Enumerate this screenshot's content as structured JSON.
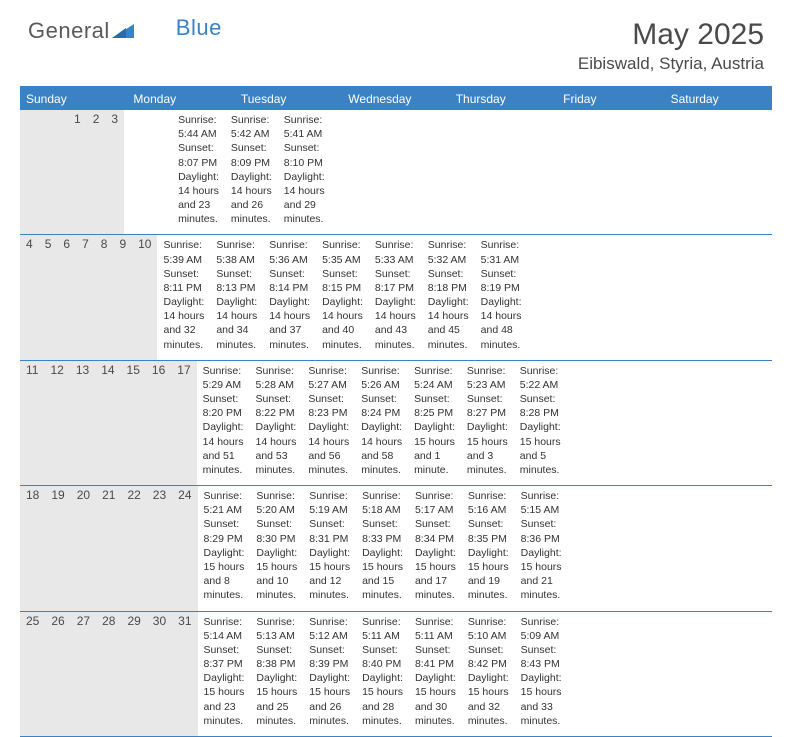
{
  "brand": {
    "part1": "General",
    "part2": "Blue"
  },
  "title": "May 2025",
  "location": "Eibiswald, Styria, Austria",
  "colors": {
    "accent": "#3b82c4",
    "header_bg": "#3b82c4",
    "daynum_bg": "#e8e8e8",
    "text": "#333333",
    "title_text": "#4a4a4a"
  },
  "weekdays": [
    "Sunday",
    "Monday",
    "Tuesday",
    "Wednesday",
    "Thursday",
    "Friday",
    "Saturday"
  ],
  "weeks": [
    [
      {
        "n": "",
        "sr": "",
        "ss": "",
        "dl": ""
      },
      {
        "n": "",
        "sr": "",
        "ss": "",
        "dl": ""
      },
      {
        "n": "",
        "sr": "",
        "ss": "",
        "dl": ""
      },
      {
        "n": "",
        "sr": "",
        "ss": "",
        "dl": ""
      },
      {
        "n": "1",
        "sr": "Sunrise: 5:44 AM",
        "ss": "Sunset: 8:07 PM",
        "dl": "Daylight: 14 hours and 23 minutes."
      },
      {
        "n": "2",
        "sr": "Sunrise: 5:42 AM",
        "ss": "Sunset: 8:09 PM",
        "dl": "Daylight: 14 hours and 26 minutes."
      },
      {
        "n": "3",
        "sr": "Sunrise: 5:41 AM",
        "ss": "Sunset: 8:10 PM",
        "dl": "Daylight: 14 hours and 29 minutes."
      }
    ],
    [
      {
        "n": "4",
        "sr": "Sunrise: 5:39 AM",
        "ss": "Sunset: 8:11 PM",
        "dl": "Daylight: 14 hours and 32 minutes."
      },
      {
        "n": "5",
        "sr": "Sunrise: 5:38 AM",
        "ss": "Sunset: 8:13 PM",
        "dl": "Daylight: 14 hours and 34 minutes."
      },
      {
        "n": "6",
        "sr": "Sunrise: 5:36 AM",
        "ss": "Sunset: 8:14 PM",
        "dl": "Daylight: 14 hours and 37 minutes."
      },
      {
        "n": "7",
        "sr": "Sunrise: 5:35 AM",
        "ss": "Sunset: 8:15 PM",
        "dl": "Daylight: 14 hours and 40 minutes."
      },
      {
        "n": "8",
        "sr": "Sunrise: 5:33 AM",
        "ss": "Sunset: 8:17 PM",
        "dl": "Daylight: 14 hours and 43 minutes."
      },
      {
        "n": "9",
        "sr": "Sunrise: 5:32 AM",
        "ss": "Sunset: 8:18 PM",
        "dl": "Daylight: 14 hours and 45 minutes."
      },
      {
        "n": "10",
        "sr": "Sunrise: 5:31 AM",
        "ss": "Sunset: 8:19 PM",
        "dl": "Daylight: 14 hours and 48 minutes."
      }
    ],
    [
      {
        "n": "11",
        "sr": "Sunrise: 5:29 AM",
        "ss": "Sunset: 8:20 PM",
        "dl": "Daylight: 14 hours and 51 minutes."
      },
      {
        "n": "12",
        "sr": "Sunrise: 5:28 AM",
        "ss": "Sunset: 8:22 PM",
        "dl": "Daylight: 14 hours and 53 minutes."
      },
      {
        "n": "13",
        "sr": "Sunrise: 5:27 AM",
        "ss": "Sunset: 8:23 PM",
        "dl": "Daylight: 14 hours and 56 minutes."
      },
      {
        "n": "14",
        "sr": "Sunrise: 5:26 AM",
        "ss": "Sunset: 8:24 PM",
        "dl": "Daylight: 14 hours and 58 minutes."
      },
      {
        "n": "15",
        "sr": "Sunrise: 5:24 AM",
        "ss": "Sunset: 8:25 PM",
        "dl": "Daylight: 15 hours and 1 minute."
      },
      {
        "n": "16",
        "sr": "Sunrise: 5:23 AM",
        "ss": "Sunset: 8:27 PM",
        "dl": "Daylight: 15 hours and 3 minutes."
      },
      {
        "n": "17",
        "sr": "Sunrise: 5:22 AM",
        "ss": "Sunset: 8:28 PM",
        "dl": "Daylight: 15 hours and 5 minutes."
      }
    ],
    [
      {
        "n": "18",
        "sr": "Sunrise: 5:21 AM",
        "ss": "Sunset: 8:29 PM",
        "dl": "Daylight: 15 hours and 8 minutes."
      },
      {
        "n": "19",
        "sr": "Sunrise: 5:20 AM",
        "ss": "Sunset: 8:30 PM",
        "dl": "Daylight: 15 hours and 10 minutes."
      },
      {
        "n": "20",
        "sr": "Sunrise: 5:19 AM",
        "ss": "Sunset: 8:31 PM",
        "dl": "Daylight: 15 hours and 12 minutes."
      },
      {
        "n": "21",
        "sr": "Sunrise: 5:18 AM",
        "ss": "Sunset: 8:33 PM",
        "dl": "Daylight: 15 hours and 15 minutes."
      },
      {
        "n": "22",
        "sr": "Sunrise: 5:17 AM",
        "ss": "Sunset: 8:34 PM",
        "dl": "Daylight: 15 hours and 17 minutes."
      },
      {
        "n": "23",
        "sr": "Sunrise: 5:16 AM",
        "ss": "Sunset: 8:35 PM",
        "dl": "Daylight: 15 hours and 19 minutes."
      },
      {
        "n": "24",
        "sr": "Sunrise: 5:15 AM",
        "ss": "Sunset: 8:36 PM",
        "dl": "Daylight: 15 hours and 21 minutes."
      }
    ],
    [
      {
        "n": "25",
        "sr": "Sunrise: 5:14 AM",
        "ss": "Sunset: 8:37 PM",
        "dl": "Daylight: 15 hours and 23 minutes."
      },
      {
        "n": "26",
        "sr": "Sunrise: 5:13 AM",
        "ss": "Sunset: 8:38 PM",
        "dl": "Daylight: 15 hours and 25 minutes."
      },
      {
        "n": "27",
        "sr": "Sunrise: 5:12 AM",
        "ss": "Sunset: 8:39 PM",
        "dl": "Daylight: 15 hours and 26 minutes."
      },
      {
        "n": "28",
        "sr": "Sunrise: 5:11 AM",
        "ss": "Sunset: 8:40 PM",
        "dl": "Daylight: 15 hours and 28 minutes."
      },
      {
        "n": "29",
        "sr": "Sunrise: 5:11 AM",
        "ss": "Sunset: 8:41 PM",
        "dl": "Daylight: 15 hours and 30 minutes."
      },
      {
        "n": "30",
        "sr": "Sunrise: 5:10 AM",
        "ss": "Sunset: 8:42 PM",
        "dl": "Daylight: 15 hours and 32 minutes."
      },
      {
        "n": "31",
        "sr": "Sunrise: 5:09 AM",
        "ss": "Sunset: 8:43 PM",
        "dl": "Daylight: 15 hours and 33 minutes."
      }
    ]
  ]
}
